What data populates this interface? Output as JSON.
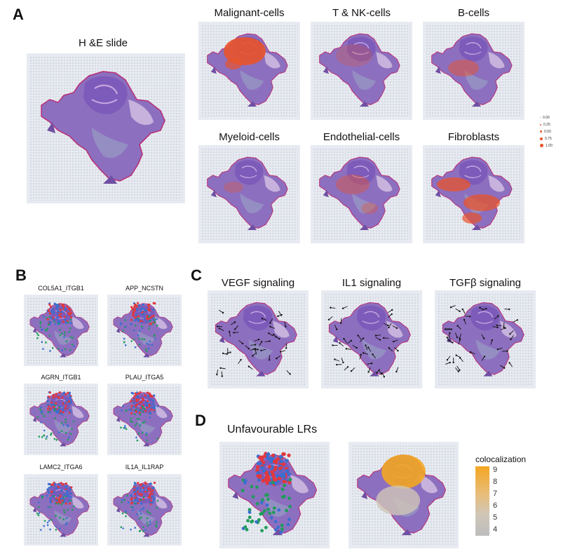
{
  "panels": {
    "A": "A",
    "B": "B",
    "C": "C",
    "D": "D"
  },
  "panelA": {
    "he_title": "H &E slide",
    "cell_titles": [
      "Malignant-cells",
      "T & NK-cells",
      "B-cells",
      "Myeloid-cells",
      "Endothelial-cells",
      "Fibroblasts"
    ],
    "legend_values": [
      "0.00",
      "0.25",
      "0.50",
      "0.75",
      "1.00"
    ]
  },
  "panelB": {
    "pairs": [
      "COL5A1_ITGB1",
      "APP_NCSTN",
      "AGRN_ITGB1",
      "PLAU_ITGA5",
      "LAMC2_ITGA6",
      "IL1A_IL1RAP"
    ]
  },
  "panelC": {
    "titles": [
      "VEGF signaling",
      "IL1 signaling",
      "TGFβ signaling"
    ]
  },
  "panelD": {
    "title": "Unfavourable LRs",
    "colorbar_title": "colocalization",
    "ticks": [
      "9",
      "8",
      "7",
      "6",
      "5",
      "4"
    ]
  },
  "colors": {
    "tissue": "#8d6fbf",
    "tissue_dark": "#9b4fa8",
    "malignant": "#e8532b",
    "ligand": "#e2383d",
    "receptor": "#1f9c5a",
    "both": "#3a6fd0",
    "coloc_high": "#f3a622"
  }
}
